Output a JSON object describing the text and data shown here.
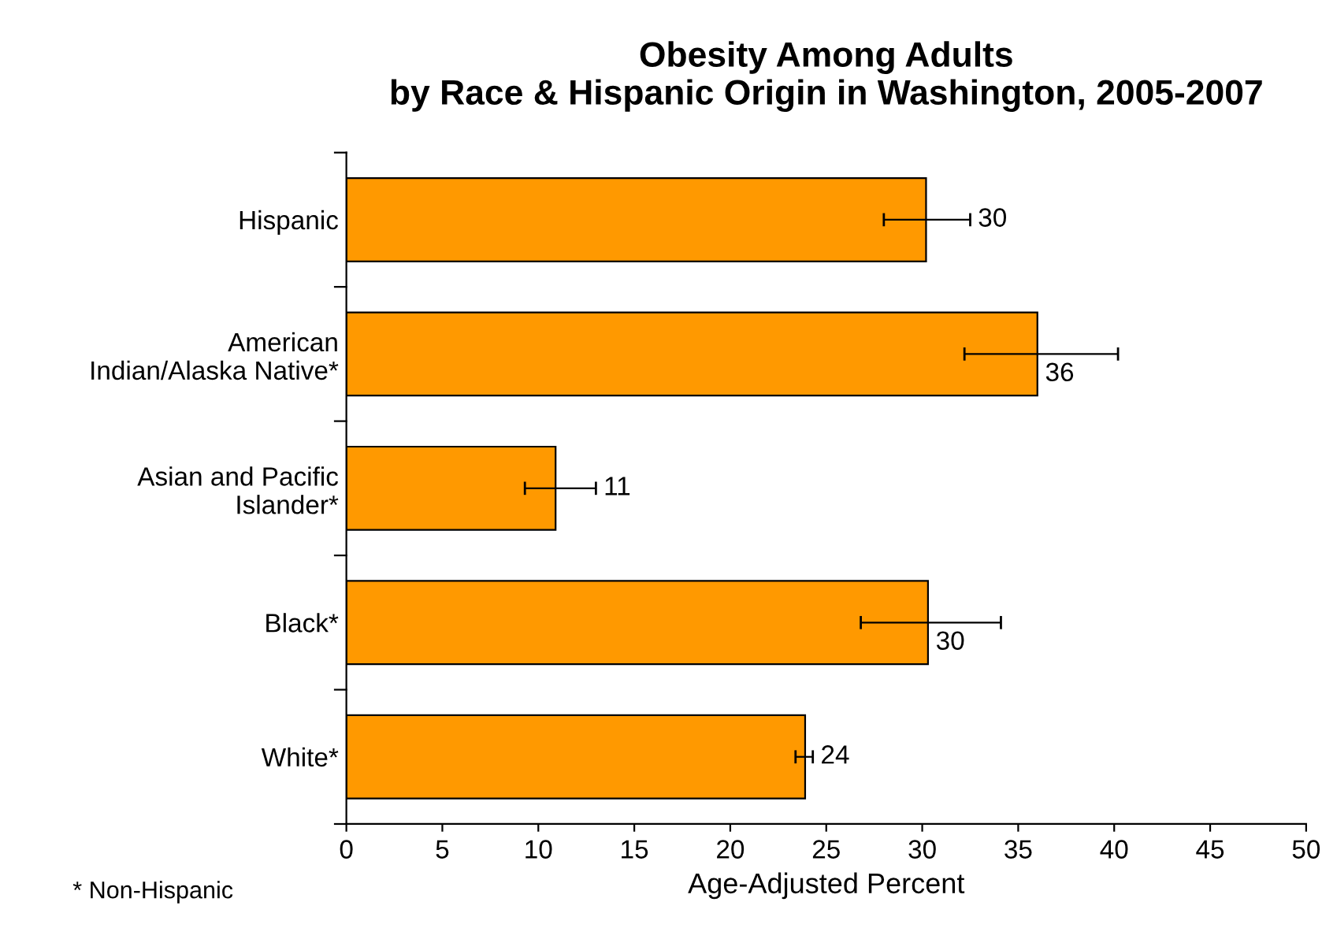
{
  "chart_data": {
    "type": "bar",
    "orientation": "horizontal",
    "title": "Obesity Among Adults\nby Race & Hispanic Origin in Washington, 2005-2007",
    "xlabel": "Age-Adjusted Percent",
    "categories": [
      "Hispanic",
      "American\nIndian/Alaska Native*",
      "Asian and Pacific\nIslander*",
      "Black*",
      "White*"
    ],
    "values": [
      30.2,
      36.0,
      10.9,
      30.3,
      23.9
    ],
    "value_labels": [
      "30",
      "36",
      "11",
      "30",
      "24"
    ],
    "errors": [
      [
        28.0,
        32.5
      ],
      [
        32.2,
        40.2
      ],
      [
        9.3,
        13.0
      ],
      [
        26.8,
        34.1
      ],
      [
        23.4,
        24.3
      ]
    ],
    "color": "#ff9900",
    "xlim": [
      0,
      50
    ],
    "xticks": [
      0,
      5,
      10,
      15,
      20,
      25,
      30,
      35,
      40,
      45,
      50
    ],
    "grid": false,
    "legend": false,
    "annotations": [
      "* Non-Hispanic"
    ]
  }
}
